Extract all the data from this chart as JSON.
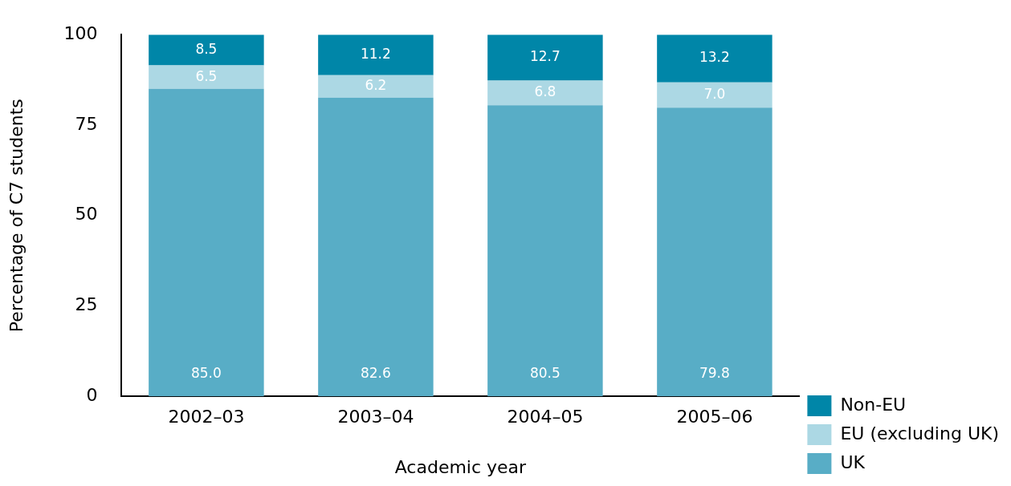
{
  "chart_data": {
    "type": "bar",
    "stacked": true,
    "xlabel": "Academic year",
    "ylabel": "Percentage of C7 students",
    "categories": [
      "2002–03",
      "2003–04",
      "2004–05",
      "2005–06"
    ],
    "series": [
      {
        "name": "UK",
        "color": "#58adc6",
        "values": [
          85.0,
          82.6,
          80.5,
          79.8
        ]
      },
      {
        "name": "EU (excluding UK)",
        "color": "#acd8e4",
        "values": [
          6.5,
          6.2,
          6.8,
          7.0
        ]
      },
      {
        "name": "Non-EU",
        "color": "#0086a8",
        "values": [
          8.5,
          11.2,
          12.7,
          13.2
        ]
      }
    ],
    "value_labels": [
      [
        "85.0",
        "82.6",
        "80.5",
        "79.8"
      ],
      [
        "6.5",
        "6.2",
        "6.8",
        "7.0"
      ],
      [
        "8.5",
        "11.2",
        "12.7",
        "13.2"
      ]
    ],
    "ylim": [
      0,
      100
    ],
    "yticks": [
      0,
      25,
      50,
      75,
      100
    ],
    "grid": false,
    "legend": "bottom right"
  }
}
